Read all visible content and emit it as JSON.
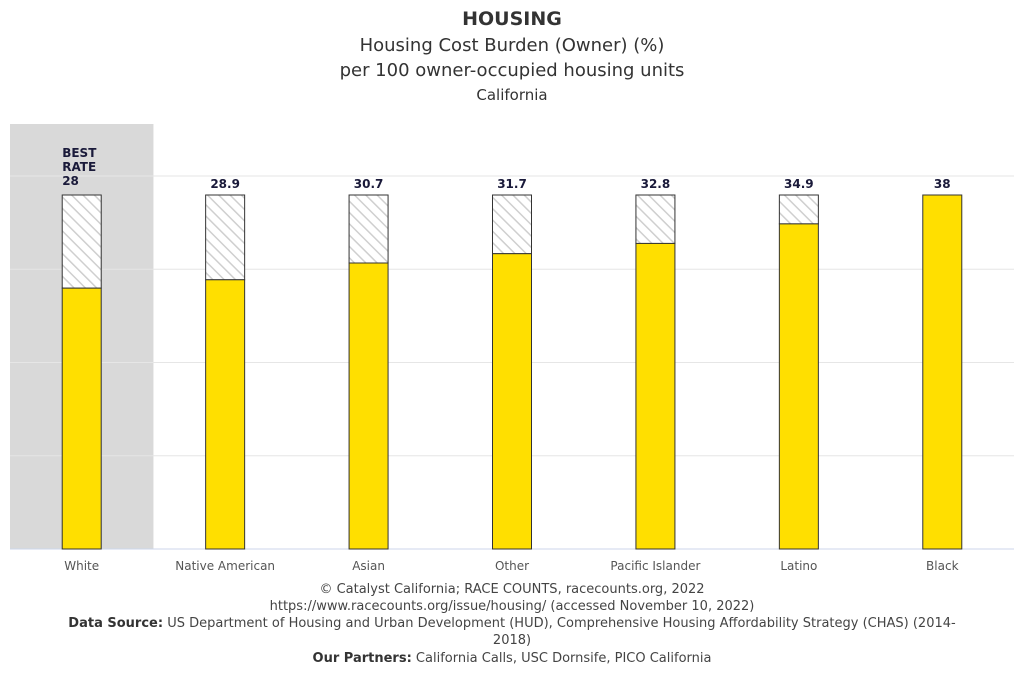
{
  "chart_data": {
    "type": "bar",
    "title": "HOUSING",
    "subtitle": "Housing Cost Burden (Owner) (%)",
    "subtitle2": "per 100 owner-occupied housing units",
    "subtitle3": "California",
    "categories": [
      "White",
      "Native American",
      "Asian",
      "Other",
      "Pacific Islander",
      "Latino",
      "Black"
    ],
    "values": [
      28,
      28.9,
      30.7,
      31.7,
      32.8,
      34.9,
      38
    ],
    "value_labels": [
      "28",
      "28.9",
      "30.7",
      "31.7",
      "32.8",
      "34.9",
      "38"
    ],
    "best_rate_label": "BEST RATE",
    "best_index": 0,
    "ylim": [
      0,
      38
    ],
    "grid": true,
    "colors": {
      "bar": "#FFDF00",
      "bar_stroke": "#333333",
      "hatch": "#cfcfcf",
      "best_bg": "#d9d9d9",
      "grid": "#e6e6e6",
      "axis": "#ccd6eb",
      "label": "#1a1a3a"
    }
  },
  "footer": {
    "copyright": "© Catalyst California; RACE COUNTS, racecounts.org, 2022",
    "url": "https://www.racecounts.org/issue/housing/ (accessed November 10, 2022)",
    "source_label": "Data Source:",
    "source_text": "US Department of Housing and Urban Development (HUD), Comprehensive Housing Affordability Strategy (CHAS) (2014-",
    "source_text2": "2018)",
    "partners_label": "Our Partners:",
    "partners_text": "California Calls, USC Dornsife, PICO California"
  }
}
